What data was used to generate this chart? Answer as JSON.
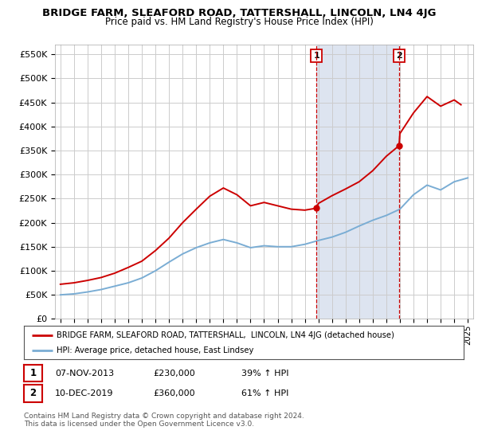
{
  "title": "BRIDGE FARM, SLEAFORD ROAD, TATTERSHALL, LINCOLN, LN4 4JG",
  "subtitle": "Price paid vs. HM Land Registry's House Price Index (HPI)",
  "ylabel_ticks": [
    "£0",
    "£50K",
    "£100K",
    "£150K",
    "£200K",
    "£250K",
    "£300K",
    "£350K",
    "£400K",
    "£450K",
    "£500K",
    "£550K"
  ],
  "y_values": [
    0,
    50000,
    100000,
    150000,
    200000,
    250000,
    300000,
    350000,
    400000,
    450000,
    500000,
    550000
  ],
  "ylim": [
    0,
    570000
  ],
  "xlim_start": 1994.6,
  "xlim_end": 2025.4,
  "sale1_date": 2013.85,
  "sale1_price": 230000,
  "sale2_date": 2019.94,
  "sale2_price": 360000,
  "red_color": "#cc0000",
  "blue_color": "#7aadd4",
  "shade_color": "#dde4f0",
  "legend_entries": [
    "BRIDGE FARM, SLEAFORD ROAD, TATTERSHALL,  LINCOLN, LN4 4JG (detached house)",
    "HPI: Average price, detached house, East Lindsey"
  ],
  "table_rows": [
    [
      "1",
      "07-NOV-2013",
      "£230,000",
      "39% ↑ HPI"
    ],
    [
      "2",
      "10-DEC-2019",
      "£360,000",
      "61% ↑ HPI"
    ]
  ],
  "footnote": "Contains HM Land Registry data © Crown copyright and database right 2024.\nThis data is licensed under the Open Government Licence v3.0.",
  "background_color": "#ffffff",
  "grid_color": "#cccccc"
}
